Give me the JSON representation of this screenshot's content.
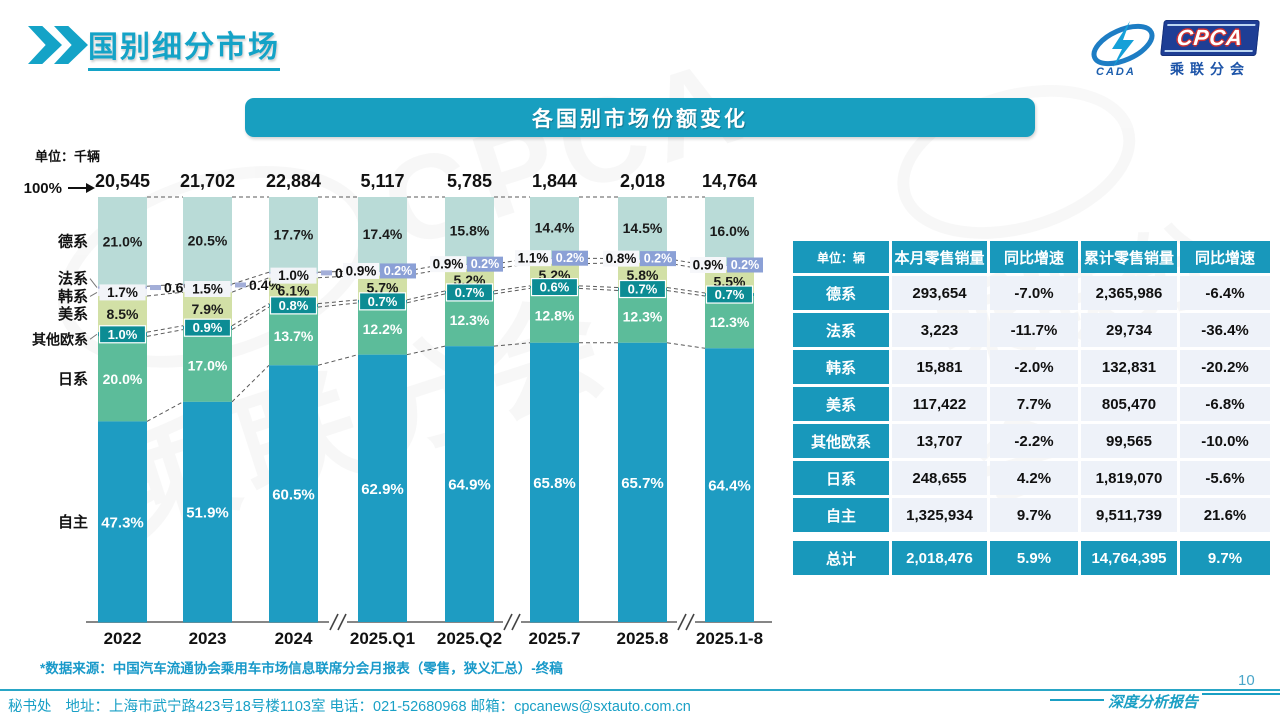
{
  "header": {
    "title": "国别细分市场"
  },
  "logo": {
    "cpca_label": "CPCA",
    "cada_label": "CADA",
    "subtitle": "乘联分会"
  },
  "banner": {
    "title": "各国别市场份额变化"
  },
  "chart_data": {
    "type": "stacked-bar",
    "title": "各国别市场份额变化",
    "unit_label": "单位：千辆",
    "top_axis_label": "100%",
    "categories": [
      "2022",
      "2023",
      "2024",
      "2025.Q1",
      "2025.Q2",
      "2025.7",
      "2025.8",
      "2025.1-8"
    ],
    "totals": [
      "20,545",
      "21,702",
      "22,884",
      "5,117",
      "5,785",
      "1,844",
      "2,018",
      "14,764"
    ],
    "series": [
      {
        "name": "德系",
        "color": "#b9dbd7",
        "values": [
          21.0,
          20.5,
          17.7,
          17.4,
          15.8,
          14.4,
          14.5,
          16.0
        ]
      },
      {
        "name": "法系",
        "color": "#a3aed8",
        "values": [
          0.6,
          0.4,
          0.3,
          0.2,
          0.2,
          0.2,
          0.2,
          0.2
        ]
      },
      {
        "name": "韩系",
        "color": "#edf0f6",
        "values": [
          1.7,
          1.5,
          1.0,
          0.9,
          0.9,
          1.1,
          0.8,
          0.9
        ]
      },
      {
        "name": "美系",
        "color": "#d2e0a6",
        "values": [
          8.5,
          7.9,
          6.1,
          5.7,
          5.2,
          5.2,
          5.8,
          5.5
        ]
      },
      {
        "name": "其他欧系",
        "color": "#0c8c94",
        "values": [
          1.0,
          0.9,
          0.8,
          0.7,
          0.7,
          0.6,
          0.7,
          0.7
        ]
      },
      {
        "name": "日系",
        "color": "#5cbc9a",
        "values": [
          20.0,
          17.0,
          13.7,
          12.2,
          12.3,
          12.8,
          12.3,
          12.3
        ]
      },
      {
        "name": "自主",
        "color": "#1e9cc2",
        "values": [
          47.3,
          51.9,
          60.5,
          62.9,
          64.9,
          65.8,
          65.7,
          64.4
        ]
      }
    ],
    "ylim": [
      0,
      100
    ],
    "legend_position": "left",
    "axis_breaks_after": [
      "2024",
      "2025.Q2",
      "2025.8"
    ]
  },
  "table": {
    "unit_header": "单位：辆",
    "columns": [
      "本月零售销量",
      "同比增速",
      "累计零售销量",
      "同比增速"
    ],
    "rows": [
      {
        "name": "德系",
        "cells": [
          "293,654",
          "-7.0%",
          "2,365,986",
          "-6.4%"
        ]
      },
      {
        "name": "法系",
        "cells": [
          "3,223",
          "-11.7%",
          "29,734",
          "-36.4%"
        ]
      },
      {
        "name": "韩系",
        "cells": [
          "15,881",
          "-2.0%",
          "132,831",
          "-20.2%"
        ]
      },
      {
        "name": "美系",
        "cells": [
          "117,422",
          "7.7%",
          "805,470",
          "-6.8%"
        ]
      },
      {
        "name": "其他欧系",
        "cells": [
          "13,707",
          "-2.2%",
          "99,565",
          "-10.0%"
        ]
      },
      {
        "name": "日系",
        "cells": [
          "248,655",
          "4.2%",
          "1,819,070",
          "-5.6%"
        ]
      },
      {
        "name": "自主",
        "cells": [
          "1,325,934",
          "9.7%",
          "9,511,739",
          "21.6%"
        ]
      },
      {
        "name": "总计",
        "cells": [
          "2,018,476",
          "5.9%",
          "14,764,395",
          "9.7%"
        ],
        "total": true
      }
    ]
  },
  "source_note": "*数据来源：中国汽车流通协会乘用车市场信息联席分会月报表（零售，狭义汇总）-终稿",
  "footer": {
    "secretariat": "秘书处",
    "contact": "地址：上海市武宁路423号18号楼1103室 电话：021-52680968  邮箱：cpcanews@sxtauto.com.cn",
    "report_label": "深度分析报告",
    "page_number": "10"
  },
  "colors": {
    "accent": "#14a3c7",
    "banner_bg": "#189fc0",
    "table_header_bg": "#1898bb",
    "fr_label_box": "#8ba0d6",
    "other_eu_chip": "#0c8c94"
  }
}
